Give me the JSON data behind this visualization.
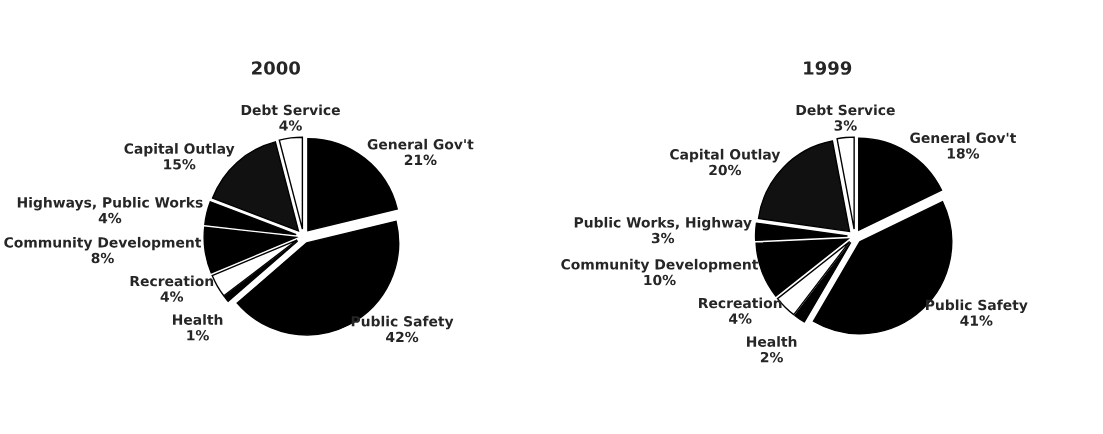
{
  "chart_data": [
    {
      "type": "pie",
      "title": "2000",
      "categories": [
        "Debt Service",
        "Capital Outlay",
        "Highways, Public Works",
        "Community Development",
        "Recreation",
        "Health",
        "Public Safety",
        "General Gov't"
      ],
      "values": [
        4,
        15,
        4,
        8,
        4,
        1,
        42,
        21
      ],
      "value_labels": [
        "4%",
        "15%",
        "4%",
        "8%",
        "4%",
        "1%",
        "42%",
        "21%"
      ],
      "colors": [
        "#ffffff",
        "#111111",
        "#000000",
        "#000000",
        "#ffffff",
        "#000000",
        "#000000",
        "#000000"
      ]
    },
    {
      "type": "pie",
      "title": "1999",
      "categories": [
        "Debt Service",
        "Capital Outlay",
        "Public Works, Highway",
        "Community Development",
        "Recreation",
        "Health",
        "Public Safety",
        "General Gov't"
      ],
      "values": [
        3,
        20,
        3,
        10,
        4,
        2,
        41,
        18
      ],
      "value_labels": [
        "3%",
        "20%",
        "3%",
        "10%",
        "4%",
        "2%",
        "41%",
        "18%"
      ],
      "colors": [
        "#ffffff",
        "#111111",
        "#000000",
        "#000000",
        "#ffffff",
        "#000000",
        "#000000",
        "#000000"
      ]
    }
  ]
}
